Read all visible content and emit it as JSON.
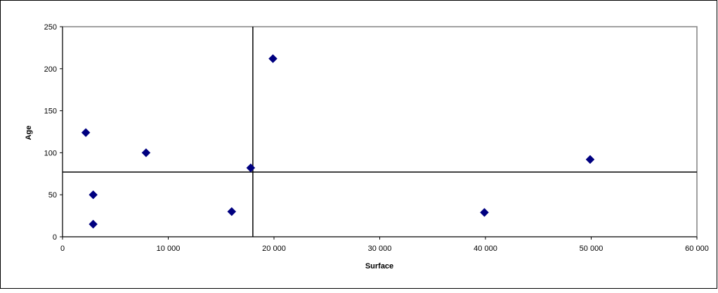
{
  "chart_data": {
    "type": "scatter",
    "xlabel": "Surface",
    "ylabel": "Age",
    "xlim": [
      0,
      60000
    ],
    "ylim": [
      0,
      250
    ],
    "x_ticks": [
      0,
      10000,
      20000,
      30000,
      40000,
      50000,
      60000
    ],
    "x_tick_labels": [
      "0",
      "10 000",
      "20 000",
      "30 000",
      "40 000",
      "50 000",
      "60 000"
    ],
    "y_ticks": [
      0,
      50,
      100,
      150,
      200,
      250
    ],
    "y_tick_labels": [
      "0",
      "50",
      "100",
      "150",
      "200",
      "250"
    ],
    "grid": false,
    "legend": "none",
    "marker": "diamond",
    "marker_color": "#000080",
    "series": [
      {
        "points": [
          {
            "x": 2200,
            "y": 124
          },
          {
            "x": 2900,
            "y": 50
          },
          {
            "x": 2900,
            "y": 15
          },
          {
            "x": 7900,
            "y": 100
          },
          {
            "x": 16000,
            "y": 30
          },
          {
            "x": 17800,
            "y": 82
          },
          {
            "x": 19900,
            "y": 212
          },
          {
            "x": 39900,
            "y": 29
          },
          {
            "x": 49900,
            "y": 92
          }
        ]
      }
    ],
    "reference_lines": [
      {
        "orientation": "vertical",
        "x": 18000
      },
      {
        "orientation": "horizontal",
        "y": 77
      }
    ]
  }
}
